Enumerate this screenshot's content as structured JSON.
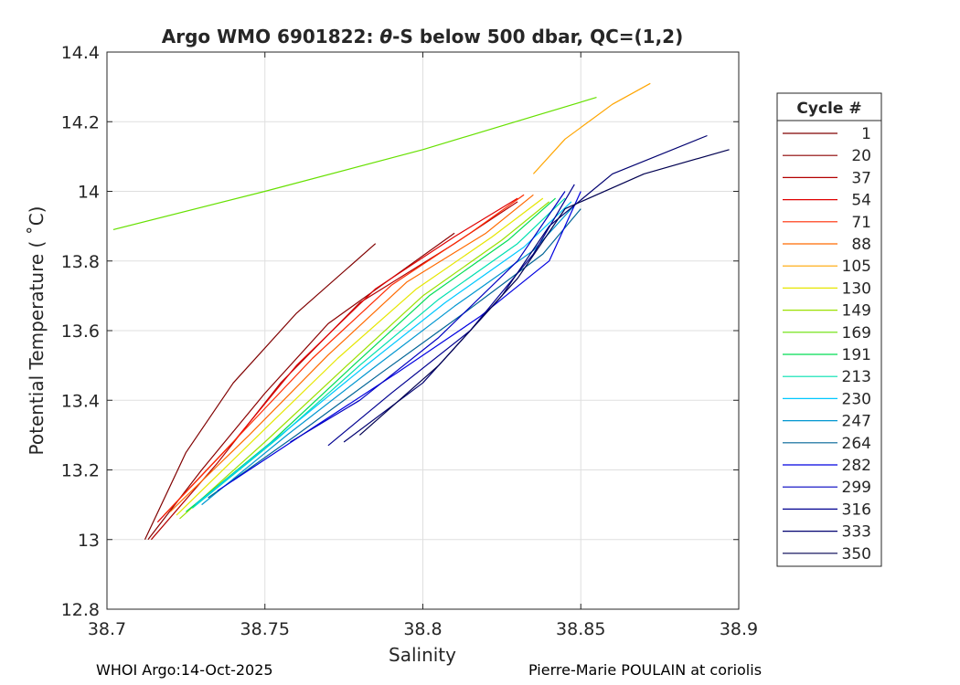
{
  "chart_data": {
    "type": "line",
    "title": "Argo WMO 6901822: θ-S below 500 dbar,  QC=(1,2)",
    "title_prefix": "Argo WMO 6901822: ",
    "title_theta": "θ",
    "title_suffix": "-S below 500 dbar,  QC=(1,2)",
    "xlabel": "Salinity",
    "ylabel": "Potential Temperature ( ˚C)",
    "xlim": [
      38.7,
      38.9
    ],
    "ylim": [
      12.8,
      14.4
    ],
    "xticks": [
      38.7,
      38.75,
      38.8,
      38.85,
      38.9
    ],
    "xtick_labels": [
      "38.7",
      "38.75",
      "38.8",
      "38.85",
      "38.9"
    ],
    "yticks": [
      12.8,
      13.0,
      13.2,
      13.4,
      13.6,
      13.8,
      14.0,
      14.2,
      14.4
    ],
    "ytick_labels": [
      "12.8",
      "13",
      "13.2",
      "13.4",
      "13.6",
      "13.8",
      "14",
      "14.2",
      "14.4"
    ],
    "grid": true,
    "legend_title": "Cycle #",
    "legend_position": "right",
    "series": [
      {
        "name": "1",
        "color": "#800000",
        "x": [
          38.712,
          38.725,
          38.74,
          38.76,
          38.785
        ],
        "y": [
          13.0,
          13.25,
          13.45,
          13.65,
          13.85
        ]
      },
      {
        "name": "20",
        "color": "#8b0000",
        "x": [
          38.713,
          38.73,
          38.75,
          38.77,
          38.79,
          38.81
        ],
        "y": [
          13.0,
          13.2,
          13.42,
          13.62,
          13.75,
          13.88
        ]
      },
      {
        "name": "37",
        "color": "#b30000",
        "x": [
          38.714,
          38.735,
          38.755,
          38.78,
          38.81,
          38.83
        ],
        "y": [
          13.0,
          13.22,
          13.45,
          13.68,
          13.85,
          13.97
        ]
      },
      {
        "name": "54",
        "color": "#e00000",
        "x": [
          38.716,
          38.74,
          38.76,
          38.785,
          38.81,
          38.83
        ],
        "y": [
          13.05,
          13.28,
          13.5,
          13.72,
          13.87,
          13.98
        ]
      },
      {
        "name": "71",
        "color": "#ff2a00",
        "x": [
          38.718,
          38.742,
          38.765,
          38.79,
          38.815,
          38.832
        ],
        "y": [
          13.07,
          13.3,
          13.52,
          13.73,
          13.88,
          13.99
        ]
      },
      {
        "name": "88",
        "color": "#ff6a00",
        "x": [
          38.72,
          38.745,
          38.77,
          38.795,
          38.82,
          38.835
        ],
        "y": [
          13.08,
          13.3,
          13.53,
          13.74,
          13.88,
          13.99
        ]
      },
      {
        "name": "105",
        "color": "#ffa500",
        "x": [
          38.835,
          38.845,
          38.86,
          38.872
        ],
        "y": [
          14.05,
          14.15,
          14.25,
          14.31
        ]
      },
      {
        "name": "130",
        "color": "#e6e600",
        "x": [
          38.722,
          38.748,
          38.773,
          38.798,
          38.822,
          38.838
        ],
        "y": [
          13.07,
          13.3,
          13.52,
          13.72,
          13.87,
          13.98
        ]
      },
      {
        "name": "149",
        "color": "#9be000",
        "x": [
          38.723,
          38.75,
          38.776,
          38.8,
          38.825,
          38.84
        ],
        "y": [
          13.06,
          13.28,
          13.5,
          13.7,
          13.86,
          13.97
        ]
      },
      {
        "name": "169",
        "color": "#66e000",
        "x": [
          38.702,
          38.75,
          38.8,
          38.855
        ],
        "y": [
          13.89,
          14.0,
          14.12,
          14.27
        ]
      },
      {
        "name": "191",
        "color": "#00dd55",
        "x": [
          38.725,
          38.752,
          38.778,
          38.802,
          38.827,
          38.842
        ],
        "y": [
          13.08,
          13.28,
          13.5,
          13.7,
          13.86,
          13.98
        ]
      },
      {
        "name": "213",
        "color": "#00e0b0",
        "x": [
          38.727,
          38.754,
          38.78,
          38.805,
          38.83,
          38.845
        ],
        "y": [
          13.09,
          13.29,
          13.5,
          13.69,
          13.85,
          13.98
        ]
      },
      {
        "name": "230",
        "color": "#00c8ff",
        "x": [
          38.728,
          38.755,
          38.782,
          38.807,
          38.832,
          38.847
        ],
        "y": [
          13.1,
          13.3,
          13.5,
          13.68,
          13.84,
          13.97
        ]
      },
      {
        "name": "247",
        "color": "#0096d0",
        "x": [
          38.73,
          38.757,
          38.784,
          38.81,
          38.835,
          38.848
        ],
        "y": [
          13.1,
          13.3,
          13.49,
          13.67,
          13.83,
          13.96
        ]
      },
      {
        "name": "264",
        "color": "#006496",
        "x": [
          38.732,
          38.76,
          38.787,
          38.813,
          38.838,
          38.85
        ],
        "y": [
          13.12,
          13.3,
          13.48,
          13.65,
          13.82,
          13.95
        ]
      },
      {
        "name": "282",
        "color": "#0000e0",
        "x": [
          38.735,
          38.765,
          38.792,
          38.818,
          38.84,
          38.85
        ],
        "y": [
          13.14,
          13.32,
          13.48,
          13.64,
          13.8,
          14.0
        ]
      },
      {
        "name": "299",
        "color": "#0000c0",
        "x": [
          38.758,
          38.78,
          38.805,
          38.83,
          38.845
        ],
        "y": [
          13.28,
          13.4,
          13.58,
          13.8,
          14.0
        ]
      },
      {
        "name": "316",
        "color": "#000090",
        "x": [
          38.77,
          38.79,
          38.815,
          38.835,
          38.848
        ],
        "y": [
          13.27,
          13.42,
          13.6,
          13.82,
          14.02
        ]
      },
      {
        "name": "333",
        "color": "#000070",
        "x": [
          38.775,
          38.8,
          38.825,
          38.84,
          38.86,
          38.89
        ],
        "y": [
          13.28,
          13.45,
          13.7,
          13.9,
          14.05,
          14.16
        ]
      },
      {
        "name": "350",
        "color": "#000050",
        "x": [
          38.78,
          38.805,
          38.83,
          38.845,
          38.87,
          38.897
        ],
        "y": [
          13.3,
          13.5,
          13.75,
          13.95,
          14.05,
          14.12
        ]
      }
    ]
  },
  "footer": {
    "left": "WHOI Argo:14-Oct-2025",
    "right": "Pierre-Marie POULAIN at coriolis"
  }
}
